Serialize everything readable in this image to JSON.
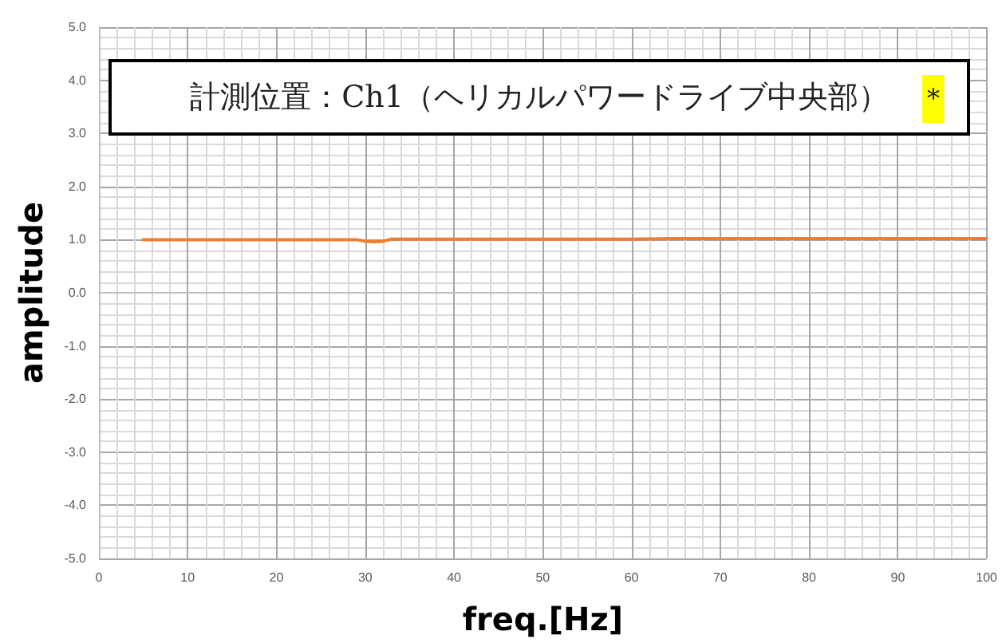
{
  "chart_data": {
    "type": "line",
    "title": "計測位置：Ch1（ヘリカルパワードライブ中央部）",
    "annotations": [
      "*"
    ],
    "xlabel": "freq.[Hz]",
    "ylabel": "amplitude",
    "x": [
      5,
      10,
      15,
      20,
      25,
      29,
      30,
      31,
      32,
      33,
      35,
      40,
      45,
      50,
      55,
      60,
      65,
      70,
      75,
      80,
      85,
      90,
      95,
      100
    ],
    "series": [
      {
        "color": "#ed7d31",
        "values": [
          1.0,
          1.0,
          1.0,
          1.0,
          1.0,
          1.0,
          0.97,
          0.96,
          0.97,
          1.01,
          1.01,
          1.01,
          1.01,
          1.01,
          1.01,
          1.01,
          1.02,
          1.02,
          1.02,
          1.02,
          1.02,
          1.02,
          1.02,
          1.02
        ]
      }
    ],
    "xlim": [
      0,
      100
    ],
    "xticks": [
      0,
      10,
      20,
      30,
      40,
      50,
      60,
      70,
      80,
      90,
      100
    ],
    "ylim": [
      -5,
      5
    ],
    "yticks": [
      {
        "value": -5,
        "label": "-5.0"
      },
      {
        "value": -4,
        "label": "-4.0"
      },
      {
        "value": -3,
        "label": "-3.0"
      },
      {
        "value": -2,
        "label": "-2.0"
      },
      {
        "value": -1,
        "label": "-1.0"
      },
      {
        "value": 0,
        "label": "0.0"
      },
      {
        "value": 1,
        "label": "1.0"
      },
      {
        "value": 2,
        "label": "2.0"
      },
      {
        "value": 3,
        "label": "3.0"
      },
      {
        "value": 4,
        "label": "4.0"
      },
      {
        "value": 5,
        "label": "5.0"
      }
    ],
    "grid": true,
    "marker": "none",
    "line_style": "solid"
  }
}
